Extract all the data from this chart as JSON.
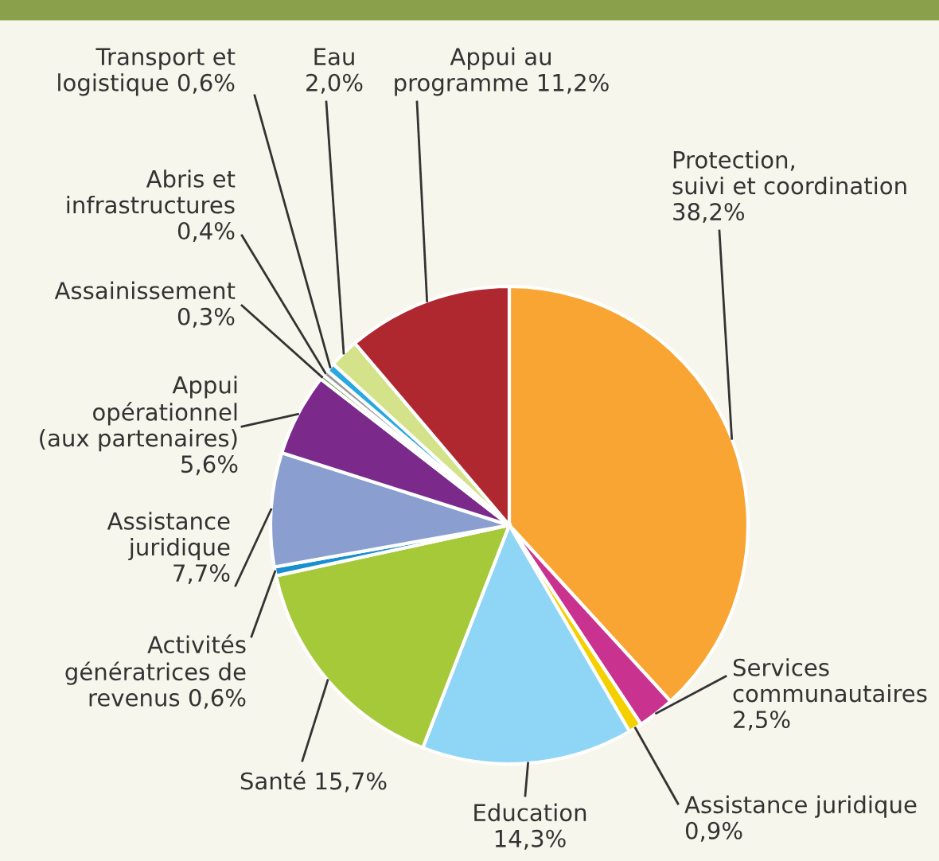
{
  "chart_data": {
    "type": "pie",
    "categories": [
      "Protection,\nsuivi et coordination",
      "Services\ncommunautaires",
      "Assistance juridique",
      "Education",
      "Santé",
      "Activités\ngénératrices de\nrevenus",
      "Assistance\njuridique",
      "Appui\nopérationnel\n(aux partenaires)",
      "Assainissement",
      "Abris et\ninfrastructures",
      "Transport et\nlogistique",
      "Eau",
      "Appui au\nprogramme"
    ],
    "value_labels": [
      "38,2%",
      "2,5%",
      "0,9%",
      "14,3%",
      "15,7%",
      "0,6%",
      "7,7%",
      "5,6%",
      "0,3%",
      "0,4%",
      "0,6%",
      "2,0%",
      "11,2%"
    ],
    "values": [
      38.2,
      2.5,
      0.9,
      14.3,
      15.7,
      0.6,
      7.7,
      5.6,
      0.3,
      0.4,
      0.6,
      2.0,
      11.2
    ],
    "colors": [
      "#f9a533",
      "#c9338f",
      "#f5d000",
      "#8fd5f5",
      "#a6c93a",
      "#1a8fd0",
      "#8a9fd0",
      "#7b2a8c",
      "#6aa84f",
      "#9a9a9a",
      "#29a8e0",
      "#d4e28a",
      "#b0282f"
    ]
  }
}
